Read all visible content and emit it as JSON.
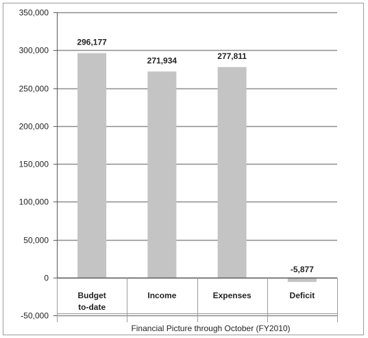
{
  "chart_data": {
    "type": "bar",
    "title": "Financial Picture through October (FY2010)",
    "xlabel": "",
    "ylabel": "",
    "categories": [
      "Budget to-date",
      "Income",
      "Expenses",
      "Deficit"
    ],
    "category_lines": [
      [
        "Budget",
        "to-date"
      ],
      [
        "Income"
      ],
      [
        "Expenses"
      ],
      [
        "Deficit"
      ]
    ],
    "values": [
      296177,
      271934,
      277811,
      -5877
    ],
    "data_labels": [
      "296,177",
      "271,934",
      "277,811",
      "-5,877"
    ],
    "ylim": [
      -50000,
      350000
    ],
    "yticks": [
      -50000,
      0,
      50000,
      100000,
      150000,
      200000,
      250000,
      300000,
      350000
    ],
    "ytick_labels": [
      "-50,000",
      "0",
      "50,000",
      "100,000",
      "150,000",
      "200,000",
      "250,000",
      "300,000",
      "350,000"
    ],
    "grid": true,
    "legend": "none",
    "colors": {
      "bar": "#c4c4c4",
      "grid": "#8c8c8c",
      "border": "#9a9a9a",
      "axis": "#555555",
      "text": "#222222"
    }
  }
}
